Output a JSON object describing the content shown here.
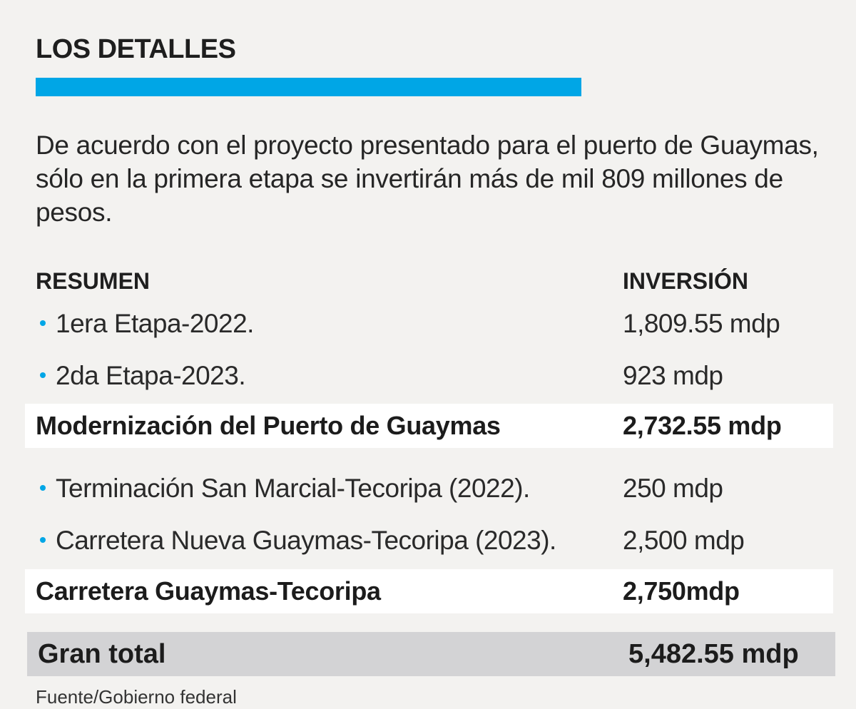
{
  "title": "LOS DETALLES",
  "intro": "De acuerdo con el proyecto presentado para el puerto de Guaymas, sólo en la primera etapa se invertirán más de mil 809 millones de pesos.",
  "table": {
    "header": {
      "label": "RESUMEN",
      "value": "INVERSIÓN"
    },
    "rows": [
      {
        "label": "1era Etapa-2022.",
        "value": "1,809.55 mdp"
      },
      {
        "label": "2da Etapa-2023.",
        "value": "923 mdp"
      },
      {
        "label": "Modernización del Puerto de Guaymas",
        "value": "2,732.55 mdp"
      },
      {
        "label": "Terminación San Marcial-Tecoripa (2022).",
        "value": "250 mdp"
      },
      {
        "label": "Carretera Nueva Guaymas-Tecoripa (2023).",
        "value": "2,500 mdp"
      },
      {
        "label": "Carretera Guaymas-Tecoripa",
        "value": "2,750mdp"
      }
    ],
    "total": {
      "label": "Gran total",
      "value": "5,482.55 mdp"
    }
  },
  "source": "Fuente/Gobierno federal",
  "colors": {
    "accent": "#00a6e6",
    "background": "#f3f2f0",
    "subtotal_band": "#ffffff",
    "total_band": "#d3d3d5"
  }
}
